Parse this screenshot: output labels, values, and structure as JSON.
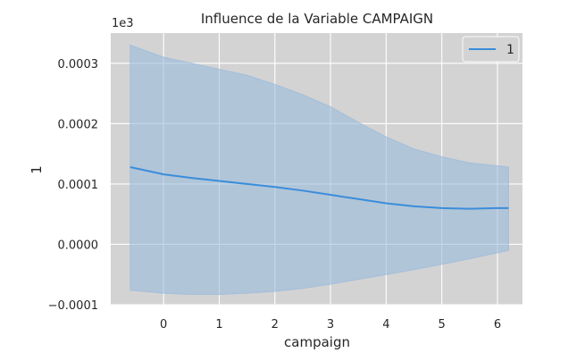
{
  "chart_data": {
    "type": "line",
    "title": "Influence de la Variable CAMPAIGN",
    "xlabel": "campaign",
    "ylabel": "1",
    "y_offset_label": "1e3",
    "xlim": [
      -0.95,
      6.45
    ],
    "ylim": [
      -0.0001,
      0.00035
    ],
    "x_ticks": [
      0,
      1,
      2,
      3,
      4,
      5,
      6
    ],
    "x_tick_labels": [
      "0",
      "1",
      "2",
      "3",
      "4",
      "5",
      "6"
    ],
    "y_ticks": [
      -0.0001,
      0.0,
      0.0001,
      0.0002,
      0.0003
    ],
    "y_tick_labels": [
      "−0.0001",
      "0.0000",
      "0.0001",
      "0.0002",
      "0.0003"
    ],
    "grid": true,
    "legend_position": "top-right",
    "colors": {
      "line": "#3a8ddb",
      "band": "#9bbcdc",
      "plot_bg": "#d3d3d3",
      "grid": "#ffffff"
    },
    "series": [
      {
        "name": "1",
        "x": [
          -0.6,
          0.0,
          0.5,
          1.0,
          1.5,
          2.0,
          2.5,
          3.0,
          3.5,
          4.0,
          4.5,
          5.0,
          5.5,
          6.0,
          6.2
        ],
        "y": [
          0.000128,
          0.000116,
          0.00011,
          0.000105,
          0.0001,
          9.5e-05,
          8.9e-05,
          8.2e-05,
          7.5e-05,
          6.8e-05,
          6.3e-05,
          6e-05,
          5.9e-05,
          6e-05,
          6e-05
        ],
        "lower": [
          -7.6e-05,
          -8.1e-05,
          -8.3e-05,
          -8.3e-05,
          -8.1e-05,
          -7.8e-05,
          -7.3e-05,
          -6.6e-05,
          -5.8e-05,
          -5e-05,
          -4.2e-05,
          -3.3e-05,
          -2.4e-05,
          -1.4e-05,
          -1e-05
        ],
        "upper": [
          0.00033,
          0.00031,
          0.0003,
          0.00029,
          0.00028,
          0.000265,
          0.000248,
          0.000228,
          0.000202,
          0.000178,
          0.000158,
          0.000145,
          0.000135,
          0.00013,
          0.000128
        ]
      }
    ]
  }
}
